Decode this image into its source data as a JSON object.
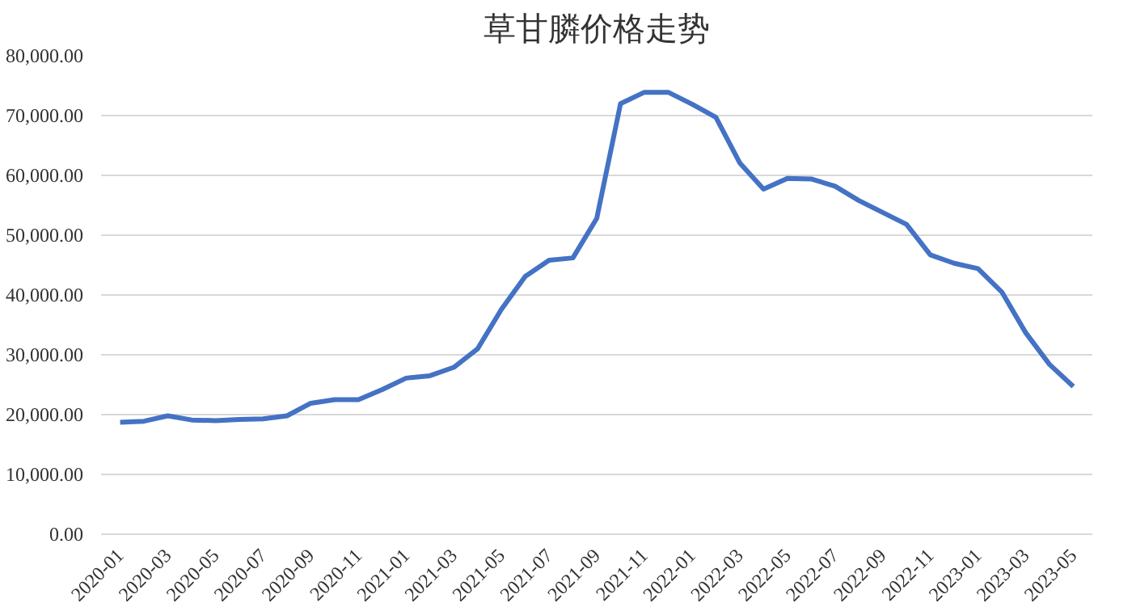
{
  "chart_data": {
    "type": "line",
    "title": "草甘膦价格走势",
    "categories": [
      "2020-01",
      null,
      "2020-03",
      null,
      "2020-05",
      null,
      "2020-07",
      null,
      "2020-09",
      null,
      "2020-11",
      null,
      "2021-01",
      null,
      "2021-03",
      null,
      "2021-05",
      null,
      "2021-07",
      null,
      "2021-09",
      null,
      "2021-11",
      null,
      "2022-01",
      null,
      "2022-03",
      null,
      "2022-05",
      null,
      "2022-07",
      null,
      "2022-09",
      null,
      "2022-11",
      null,
      "2023-01",
      null,
      "2023-03",
      null,
      "2023-05"
    ],
    "series": [
      {
        "color": "#4472c4",
        "values": [
          18700,
          18900,
          19800,
          19100,
          19000,
          19200,
          19300,
          19800,
          21900,
          22500,
          22500,
          24200,
          26100,
          26500,
          27900,
          31000,
          37600,
          43100,
          45800,
          46200,
          52800,
          72000,
          73900,
          73900,
          71900,
          69700,
          62100,
          57700,
          59500,
          59400,
          58200,
          55800,
          53800,
          51800,
          46700,
          45300,
          44400,
          40500,
          33700,
          28400,
          24700
        ]
      }
    ],
    "ylim": [
      0,
      80000
    ],
    "yticks": [
      {
        "value": 0,
        "label": "0.00"
      },
      {
        "value": 10000,
        "label": "10,000.00"
      },
      {
        "value": 20000,
        "label": "20,000.00"
      },
      {
        "value": 30000,
        "label": "30,000.00"
      },
      {
        "value": 40000,
        "label": "40,000.00"
      },
      {
        "value": 50000,
        "label": "50,000.00"
      },
      {
        "value": 60000,
        "label": "60,000.00"
      },
      {
        "value": 70000,
        "label": "70,000.00"
      },
      {
        "value": 80000,
        "label": "80,000.00"
      }
    ],
    "grid": "y"
  }
}
